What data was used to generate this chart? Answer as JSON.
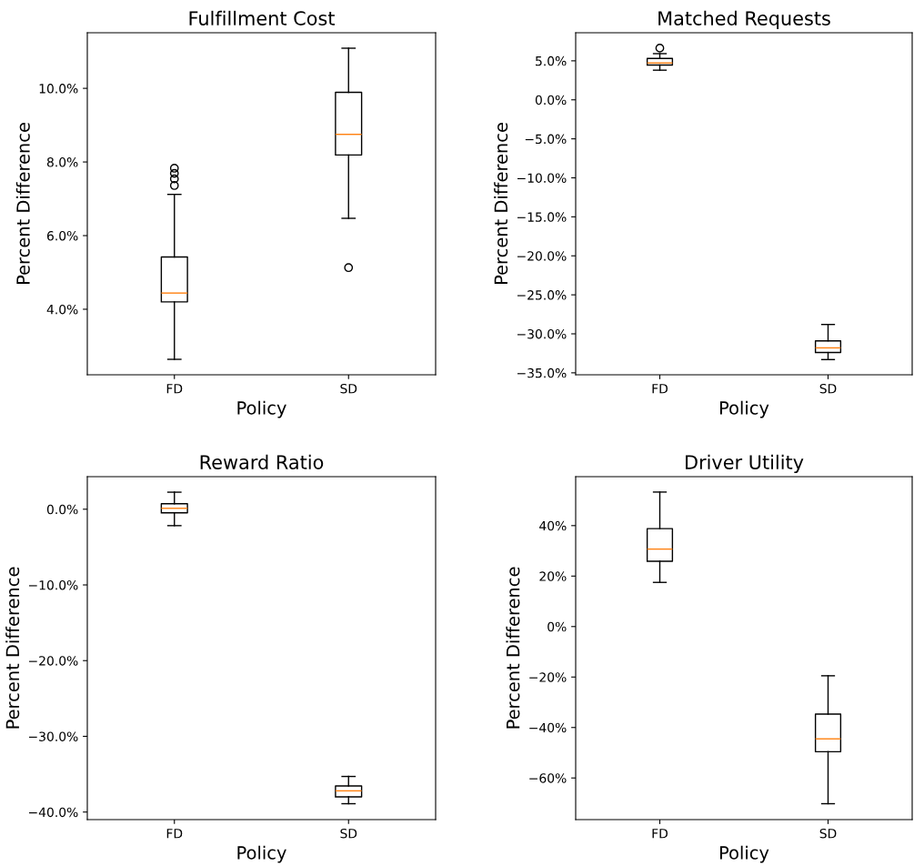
{
  "chart_data": [
    {
      "type": "box",
      "title": "Fulfillment Cost",
      "xlabel": "Policy",
      "ylabel": "Percent Difference",
      "categories": [
        "FD",
        "SD"
      ],
      "boxes": [
        {
          "low": 2.64,
          "q1": 4.2,
          "median": 4.44,
          "q3": 5.42,
          "high": 7.12,
          "outliers": [
            7.36,
            7.54,
            7.69,
            7.83
          ]
        },
        {
          "low": 6.47,
          "q1": 8.19,
          "median": 8.75,
          "q3": 9.89,
          "high": 11.09,
          "outliers": [
            5.13
          ]
        }
      ],
      "ylim": [
        2.22,
        11.51
      ],
      "yticks": [
        {
          "value": 4,
          "label": "4.0%"
        },
        {
          "value": 6,
          "label": "6.0%"
        },
        {
          "value": 8,
          "label": "8.0%"
        },
        {
          "value": 10,
          "label": "10.0%"
        }
      ]
    },
    {
      "type": "box",
      "title": "Matched Requests",
      "xlabel": "Policy",
      "ylabel": "Percent Difference",
      "categories": [
        "FD",
        "SD"
      ],
      "boxes": [
        {
          "low": 3.8,
          "q1": 4.46,
          "median": 4.73,
          "q3": 5.31,
          "high": 5.92,
          "outliers": [
            6.63
          ]
        },
        {
          "low": -33.3,
          "q1": -32.4,
          "median": -31.8,
          "q3": -30.9,
          "high": -28.8
        }
      ],
      "ylim": [
        -35.25,
        8.6
      ],
      "yticks": [
        {
          "value": -35,
          "label": "−35.0%"
        },
        {
          "value": -30,
          "label": "−30.0%"
        },
        {
          "value": -25,
          "label": "−25.0%"
        },
        {
          "value": -20,
          "label": "−20.0%"
        },
        {
          "value": -15,
          "label": "−15.0%"
        },
        {
          "value": -10,
          "label": "−10.0%"
        },
        {
          "value": -5,
          "label": "−5.0%"
        },
        {
          "value": 0,
          "label": "0.0%"
        },
        {
          "value": 5,
          "label": "5.0%"
        }
      ]
    },
    {
      "type": "box",
      "title": "Reward Ratio",
      "xlabel": "Policy",
      "ylabel": "Percent Difference",
      "categories": [
        "FD",
        "SD"
      ],
      "boxes": [
        {
          "low": -2.17,
          "q1": -0.48,
          "median": 0.12,
          "q3": 0.72,
          "high": 2.25
        },
        {
          "low": -38.9,
          "q1": -38.0,
          "median": -37.2,
          "q3": -36.55,
          "high": -35.3
        }
      ],
      "ylim": [
        -41.0,
        4.3
      ],
      "yticks": [
        {
          "value": -40,
          "label": "−40.0%"
        },
        {
          "value": -30,
          "label": "−30.0%"
        },
        {
          "value": -20,
          "label": "−20.0%"
        },
        {
          "value": -10,
          "label": "−10.0%"
        },
        {
          "value": 0,
          "label": "0.0%"
        }
      ]
    },
    {
      "type": "box",
      "title": "Driver Utility",
      "xlabel": "Policy",
      "ylabel": "Percent Difference",
      "categories": [
        "FD",
        "SD"
      ],
      "boxes": [
        {
          "low": 17.5,
          "q1": 25.9,
          "median": 30.7,
          "q3": 38.8,
          "high": 53.3
        },
        {
          "low": -70.2,
          "q1": -49.6,
          "median": -44.5,
          "q3": -34.7,
          "high": -19.5
        }
      ],
      "ylim": [
        -76.5,
        59.4
      ],
      "yticks": [
        {
          "value": -60,
          "label": "−60%"
        },
        {
          "value": -40,
          "label": "−40%"
        },
        {
          "value": -20,
          "label": "−20%"
        },
        {
          "value": 0,
          "label": "0%"
        },
        {
          "value": 20,
          "label": "20%"
        },
        {
          "value": 40,
          "label": "40%"
        }
      ]
    }
  ]
}
